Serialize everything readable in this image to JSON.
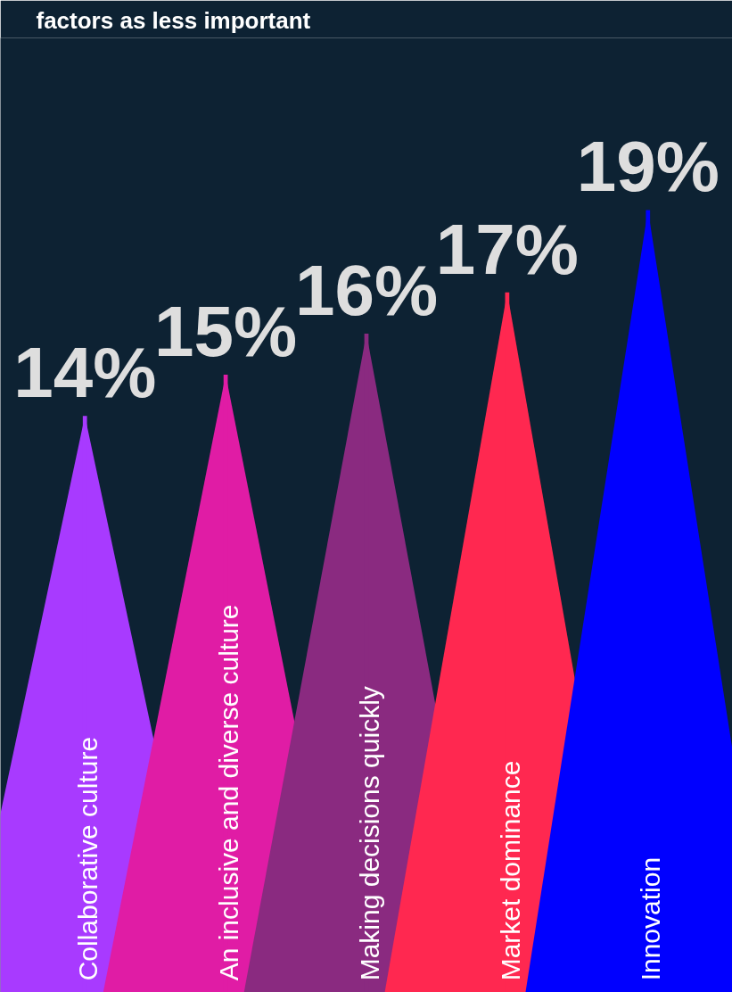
{
  "chart_data": {
    "type": "bar",
    "title": "factors as less important",
    "categories": [
      "Collaborative culture",
      "An inclusive and diverse culture",
      "Making decisions quickly",
      "Market dominance",
      "Innovation"
    ],
    "values": [
      14,
      15,
      16,
      17,
      19
    ],
    "value_labels": [
      "14%",
      "15%",
      "16%",
      "17%",
      "19%"
    ],
    "colors": [
      "#a83aff",
      "#e01ca5",
      "#8a2a80",
      "#ff2850",
      "#0000ff"
    ],
    "grid": false
  }
}
